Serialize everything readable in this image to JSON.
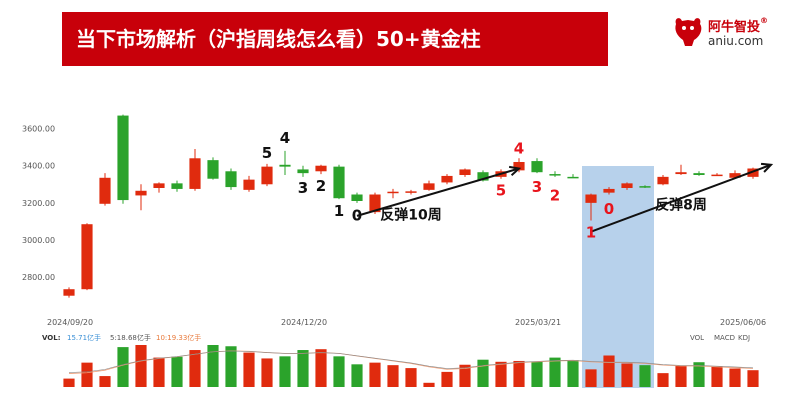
{
  "header": {
    "title": "当下市场解析（沪指周线怎么看）50+黄金柱",
    "logo_name": "阿牛智投",
    "logo_url": "aniu.com"
  },
  "colors": {
    "up": "#e02b0e",
    "down": "#2ba32b",
    "highlight": "#aac9e8",
    "banner": "#c8000a",
    "annot_red": "#e8141c",
    "annot_black": "#111111",
    "ma": "#f0a07a",
    "ma2": "#888888"
  },
  "chart_data": {
    "type": "candlestick",
    "ylim": [
      2650,
      3700
    ],
    "yticks": [
      "2800.00",
      "3000.00",
      "3200.00",
      "3400.00",
      "3600.00"
    ],
    "xtick_labels": [
      {
        "i": 0,
        "label": "2024/09/20"
      },
      {
        "i": 13,
        "label": "2024/12/20"
      },
      {
        "i": 26,
        "label": "2025/03/21"
      },
      {
        "i": 39,
        "label": "2025/06/06"
      }
    ],
    "candles": [
      {
        "o": 2700,
        "c": 2735,
        "h": 2745,
        "l": 2690
      },
      {
        "o": 2735,
        "c": 3085,
        "h": 3090,
        "l": 2730
      },
      {
        "o": 3195,
        "c": 3335,
        "h": 3360,
        "l": 3185
      },
      {
        "o": 3670,
        "c": 3215,
        "h": 3675,
        "l": 3195
      },
      {
        "o": 3240,
        "c": 3265,
        "h": 3300,
        "l": 3160
      },
      {
        "o": 3280,
        "c": 3305,
        "h": 3310,
        "l": 3255
      },
      {
        "o": 3305,
        "c": 3275,
        "h": 3320,
        "l": 3260
      },
      {
        "o": 3275,
        "c": 3440,
        "h": 3490,
        "l": 3265
      },
      {
        "o": 3430,
        "c": 3330,
        "h": 3445,
        "l": 3325
      },
      {
        "o": 3370,
        "c": 3285,
        "h": 3385,
        "l": 3270
      },
      {
        "o": 3270,
        "c": 3325,
        "h": 3345,
        "l": 3260
      },
      {
        "o": 3300,
        "c": 3395,
        "h": 3410,
        "l": 3290
      },
      {
        "o": 3405,
        "c": 3395,
        "h": 3480,
        "l": 3350
      },
      {
        "o": 3380,
        "c": 3360,
        "h": 3400,
        "l": 3340
      },
      {
        "o": 3370,
        "c": 3400,
        "h": 3405,
        "l": 3355
      },
      {
        "o": 3395,
        "c": 3225,
        "h": 3405,
        "l": 3220
      },
      {
        "o": 3245,
        "c": 3210,
        "h": 3255,
        "l": 3200
      },
      {
        "o": 3150,
        "c": 3245,
        "h": 3255,
        "l": 3140
      },
      {
        "o": 3255,
        "c": 3260,
        "h": 3275,
        "l": 3225
      },
      {
        "o": 3255,
        "c": 3262,
        "h": 3270,
        "l": 3245
      },
      {
        "o": 3270,
        "c": 3305,
        "h": 3320,
        "l": 3265
      },
      {
        "o": 3310,
        "c": 3345,
        "h": 3355,
        "l": 3300
      },
      {
        "o": 3350,
        "c": 3380,
        "h": 3385,
        "l": 3340
      },
      {
        "o": 3365,
        "c": 3320,
        "h": 3375,
        "l": 3315
      },
      {
        "o": 3340,
        "c": 3370,
        "h": 3380,
        "l": 3330
      },
      {
        "o": 3375,
        "c": 3420,
        "h": 3440,
        "l": 3365
      },
      {
        "o": 3425,
        "c": 3365,
        "h": 3440,
        "l": 3360
      },
      {
        "o": 3355,
        "c": 3350,
        "h": 3370,
        "l": 3340
      },
      {
        "o": 3340,
        "c": 3338,
        "h": 3355,
        "l": 3335
      },
      {
        "o": 3200,
        "c": 3245,
        "h": 3250,
        "l": 3105
      },
      {
        "o": 3255,
        "c": 3275,
        "h": 3285,
        "l": 3245
      },
      {
        "o": 3280,
        "c": 3305,
        "h": 3310,
        "l": 3270
      },
      {
        "o": 3290,
        "c": 3285,
        "h": 3295,
        "l": 3280
      },
      {
        "o": 3300,
        "c": 3340,
        "h": 3350,
        "l": 3295
      },
      {
        "o": 3355,
        "c": 3365,
        "h": 3405,
        "l": 3350
      },
      {
        "o": 3360,
        "c": 3350,
        "h": 3370,
        "l": 3345
      },
      {
        "o": 3350,
        "c": 3352,
        "h": 3360,
        "l": 3345
      },
      {
        "o": 3335,
        "c": 3360,
        "h": 3375,
        "l": 3330
      },
      {
        "o": 3340,
        "c": 3385,
        "h": 3390,
        "l": 3330
      }
    ],
    "volume": {
      "legend": {
        "vol": "VOL:",
        "v1": "15.71亿手",
        "v2": "5:18.68亿手",
        "v3": "10:19.33亿手"
      },
      "tabs": [
        "VOL",
        "MACD",
        "KDJ"
      ],
      "bars": [
        20,
        58,
        26,
        95,
        100,
        70,
        72,
        88,
        100,
        97,
        82,
        68,
        73,
        88,
        90,
        73,
        54,
        58,
        52,
        45,
        10,
        36,
        53,
        65,
        60,
        62,
        60,
        70,
        64,
        42,
        75,
        56,
        52,
        33,
        50,
        59,
        49,
        44,
        40
      ],
      "ma": [
        32,
        34,
        40,
        52,
        62,
        68,
        72,
        78,
        84,
        86,
        85,
        82,
        80,
        80,
        82,
        80,
        74,
        68,
        62,
        56,
        48,
        42,
        44,
        50,
        54,
        58,
        60,
        62,
        63,
        60,
        58,
        58,
        56,
        52,
        50,
        50,
        48,
        46,
        44
      ]
    },
    "highlight_band": {
      "from": 29,
      "to": 32
    },
    "annotations": [
      {
        "i": 11,
        "text": "5",
        "color": "black",
        "side": "above",
        "v": 3420
      },
      {
        "i": 12,
        "text": "4",
        "color": "black",
        "side": "above",
        "v": 3500
      },
      {
        "i": 13,
        "text": "3",
        "color": "black",
        "side": "below",
        "v": 3340
      },
      {
        "i": 14,
        "text": "2",
        "color": "black",
        "side": "below",
        "v": 3350
      },
      {
        "i": 15,
        "text": "1",
        "color": "black",
        "side": "below",
        "v": 3215
      },
      {
        "i": 16,
        "text": "0",
        "color": "black",
        "side": "below",
        "v": 3190
      },
      {
        "i": 24,
        "text": "5",
        "color": "red",
        "side": "below",
        "v": 3325
      },
      {
        "i": 25,
        "text": "4",
        "color": "red",
        "side": "above",
        "v": 3445
      },
      {
        "i": 26,
        "text": "3",
        "color": "red",
        "side": "below",
        "v": 3345
      },
      {
        "i": 27,
        "text": "2",
        "color": "red",
        "side": "below",
        "v": 3300
      },
      {
        "i": 29,
        "text": "1",
        "color": "red",
        "side": "below",
        "v": 3100
      },
      {
        "i": 30,
        "text": "0",
        "color": "red",
        "side": "below",
        "v": 3225
      }
    ],
    "rebound_labels": [
      {
        "text": "反弹10周",
        "i": 19,
        "v": 3110
      },
      {
        "text": "反弹8周",
        "i": 34,
        "v": 3165
      }
    ],
    "arrows": [
      {
        "i0": 16,
        "v0": 3130,
        "i1": 25,
        "v1": 3385
      },
      {
        "i0": 29,
        "v0": 3045,
        "i1": 39,
        "v1": 3405
      }
    ]
  }
}
